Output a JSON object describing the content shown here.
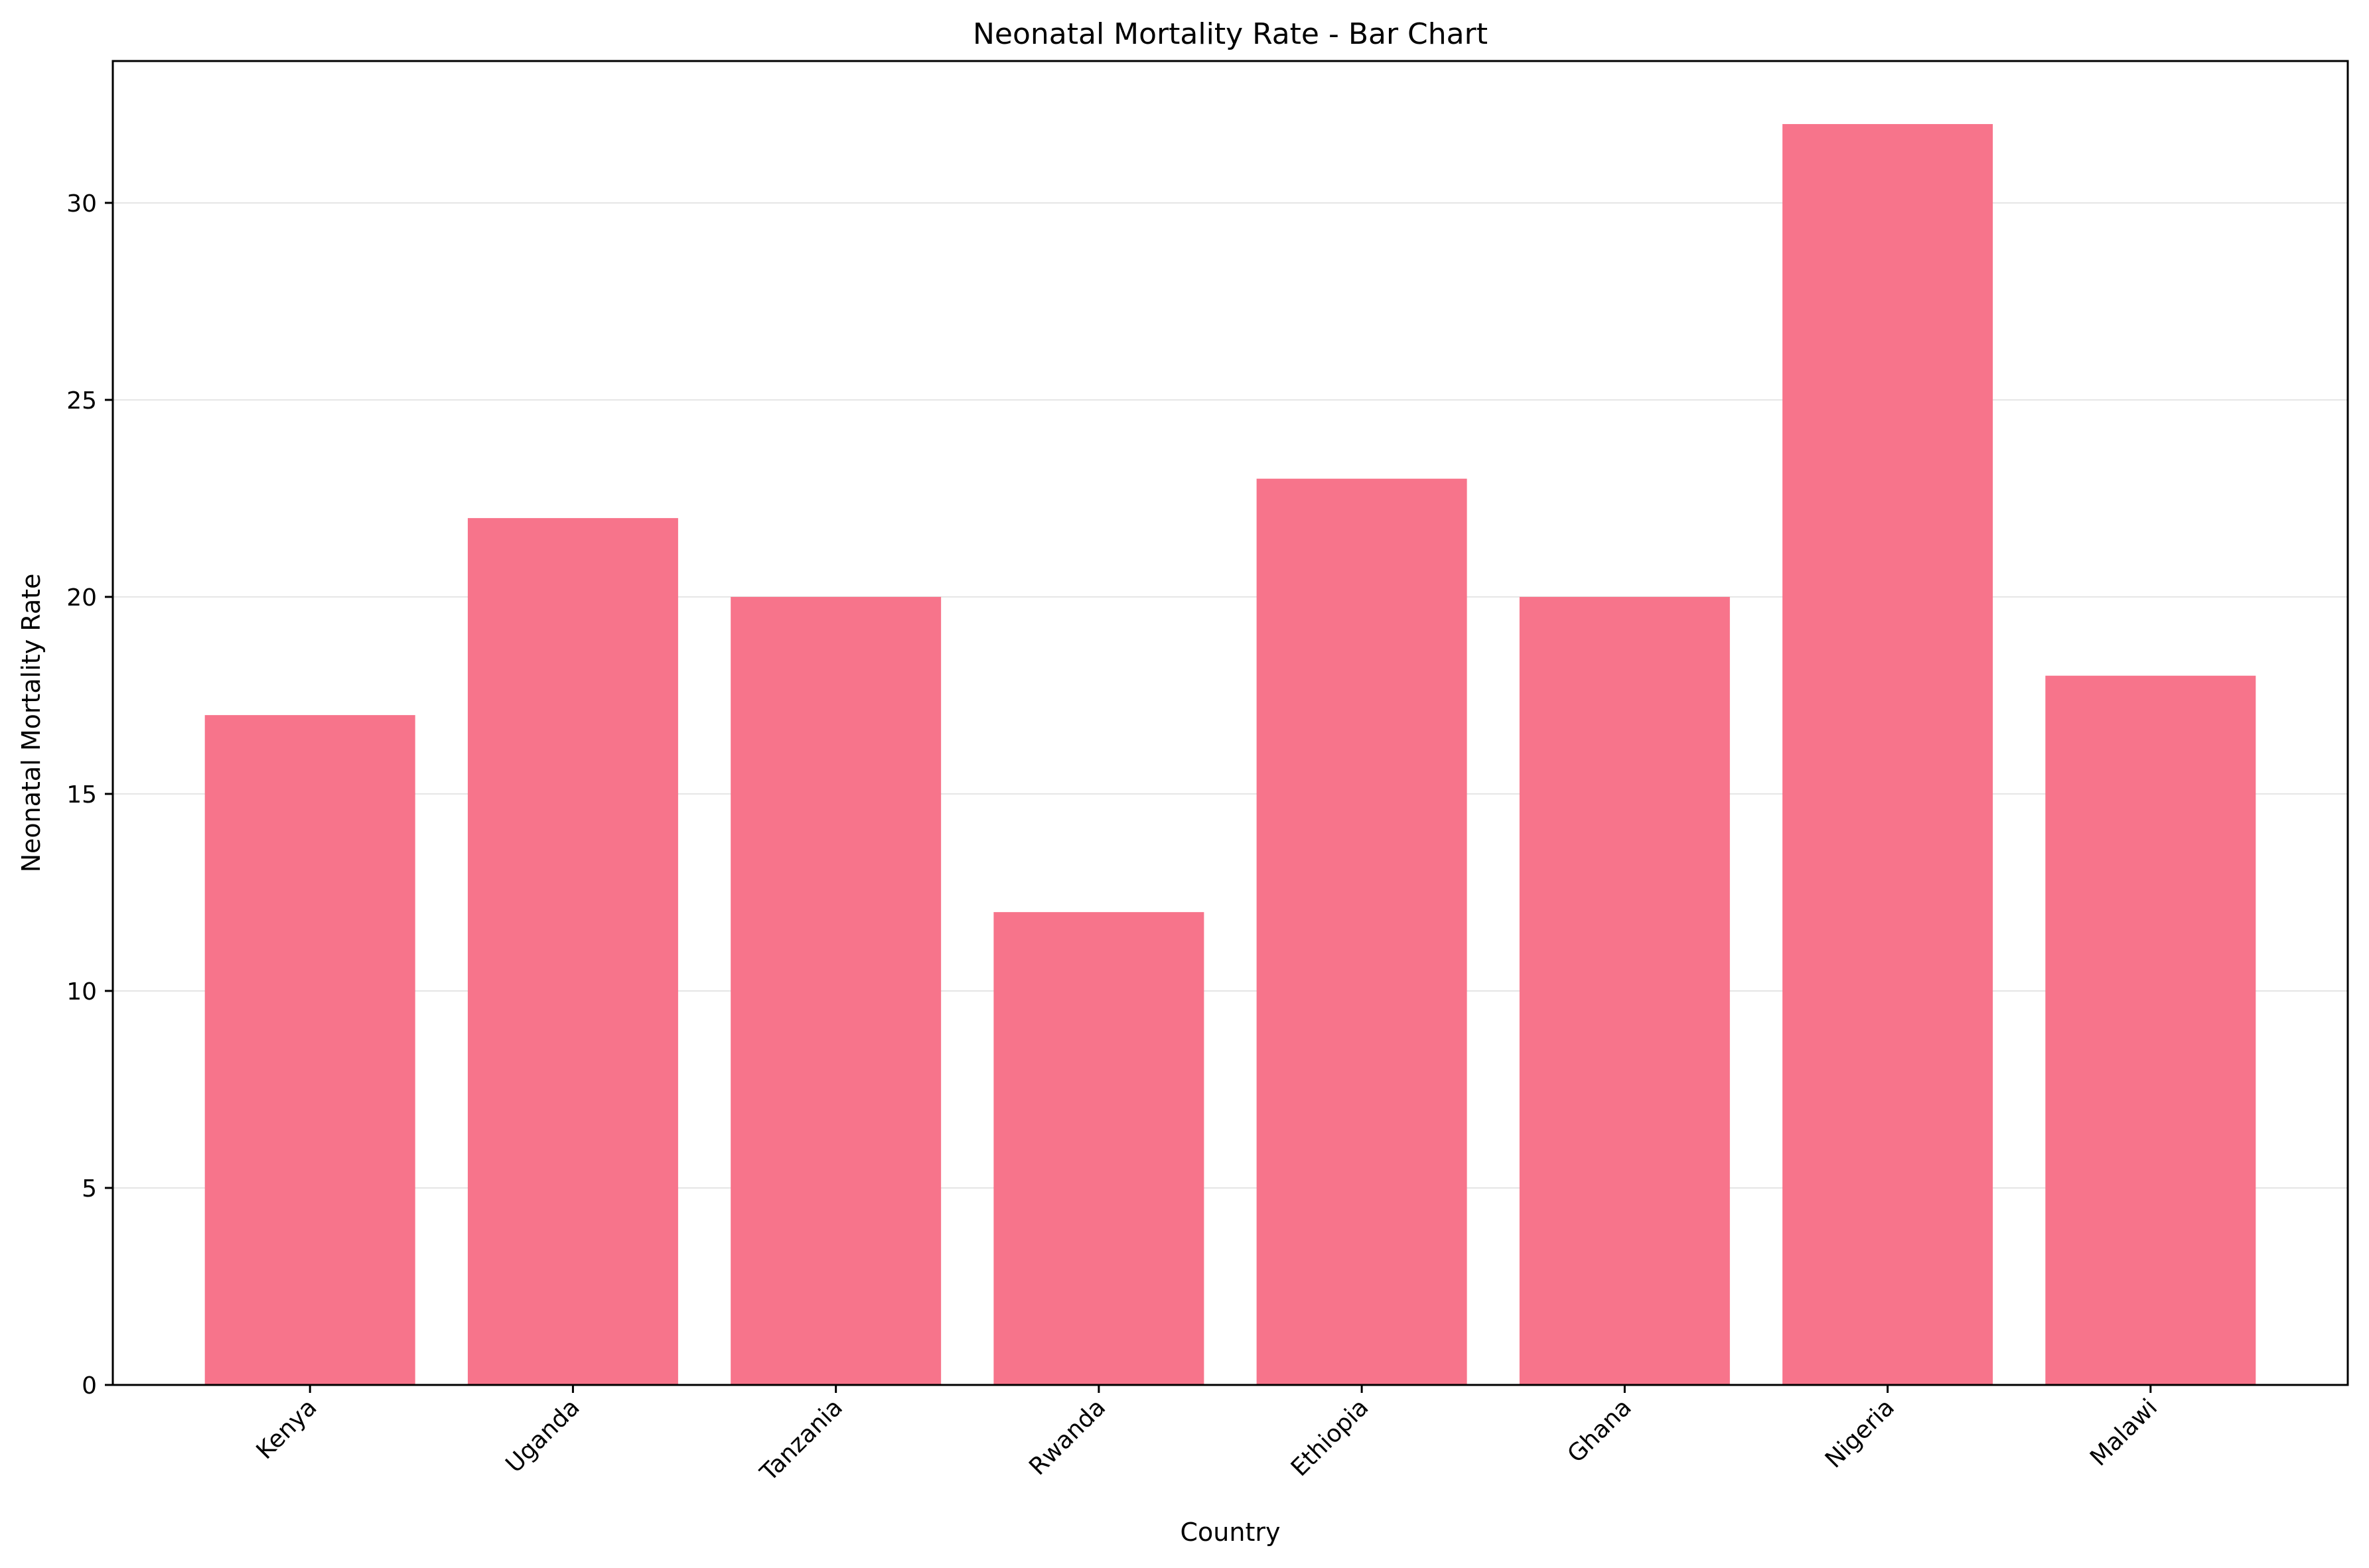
{
  "chart_data": {
    "type": "bar",
    "title": "Neonatal Mortality Rate - Bar Chart",
    "xlabel": "Country",
    "ylabel": "Neonatal Mortality Rate",
    "categories": [
      "Kenya",
      "Uganda",
      "Tanzania",
      "Rwanda",
      "Ethiopia",
      "Ghana",
      "Nigeria",
      "Malawi"
    ],
    "values": [
      17,
      22,
      20,
      12,
      23,
      20,
      32,
      18
    ],
    "ylim": [
      0,
      33.6
    ],
    "yticks": [
      0,
      5,
      10,
      15,
      20,
      25,
      30
    ],
    "grid": "y-axis, light gray",
    "legend": "none",
    "colors": {
      "bar": "#f7748b",
      "grid": "#e5e5e5",
      "axis": "#000000"
    }
  }
}
